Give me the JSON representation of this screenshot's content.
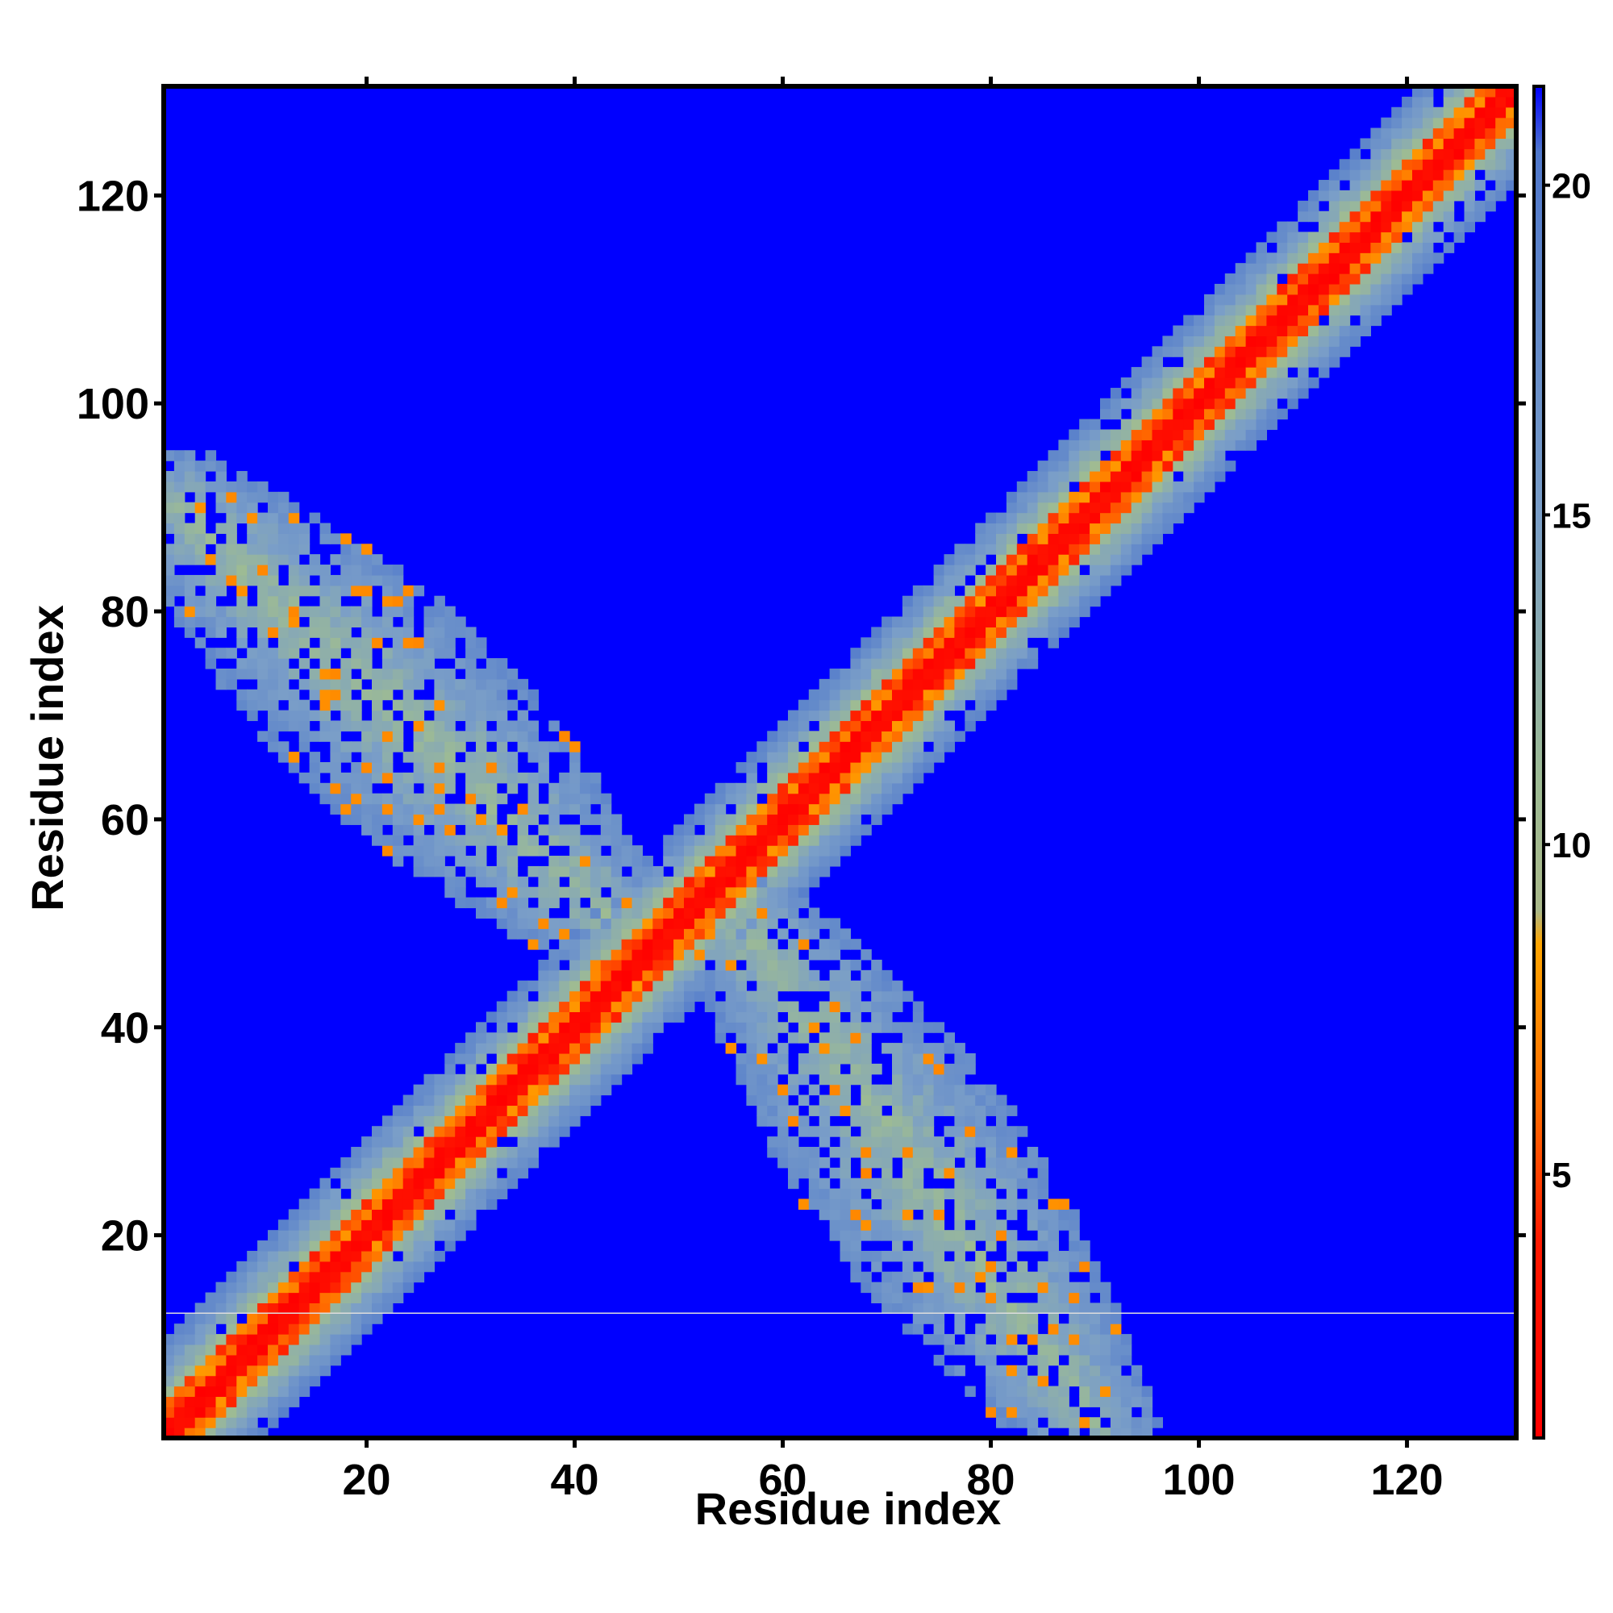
{
  "chart_data": {
    "type": "heatmap",
    "title": "",
    "xlabel": "Residue index",
    "ylabel": "Residue index",
    "xlim": [
      1,
      130
    ],
    "ylim": [
      1,
      130
    ],
    "x_ticks": [
      20,
      40,
      60,
      80,
      100,
      120
    ],
    "y_ticks": [
      20,
      40,
      60,
      80,
      100,
      120
    ],
    "colorbar": {
      "ticks": [
        5,
        10,
        15,
        20
      ],
      "range": [
        1,
        21.5
      ],
      "colors": [
        {
          "value": 1,
          "color": "#ff0000"
        },
        {
          "value": 4,
          "color": "#ff1a00"
        },
        {
          "value": 6,
          "color": "#ff6a00"
        },
        {
          "value": 8.5,
          "color": "#ffa500"
        },
        {
          "value": 9,
          "color": "#aab98a"
        },
        {
          "value": 11,
          "color": "#9dbb94"
        },
        {
          "value": 15,
          "color": "#7a9ec8"
        },
        {
          "value": 20.5,
          "color": "#5078cc"
        },
        {
          "value": 21.5,
          "color": "#0000ff"
        }
      ]
    },
    "background_value": 21.5,
    "regions": [
      {
        "name": "main diagonal band",
        "from": [
          1,
          1
        ],
        "to": [
          130,
          130
        ],
        "core": 1.5,
        "warm_width": 3,
        "halo_width": 9
      },
      {
        "name": "anti-diagonal lower-left",
        "from": [
          2,
          90
        ],
        "to": [
          44,
          50
        ],
        "contact_value": 12
      },
      {
        "name": "anti-diagonal upper-right",
        "from": [
          56,
          50
        ],
        "to": [
          90,
          2
        ],
        "contact_value": 12
      }
    ],
    "anomaly_row": 12.5
  }
}
